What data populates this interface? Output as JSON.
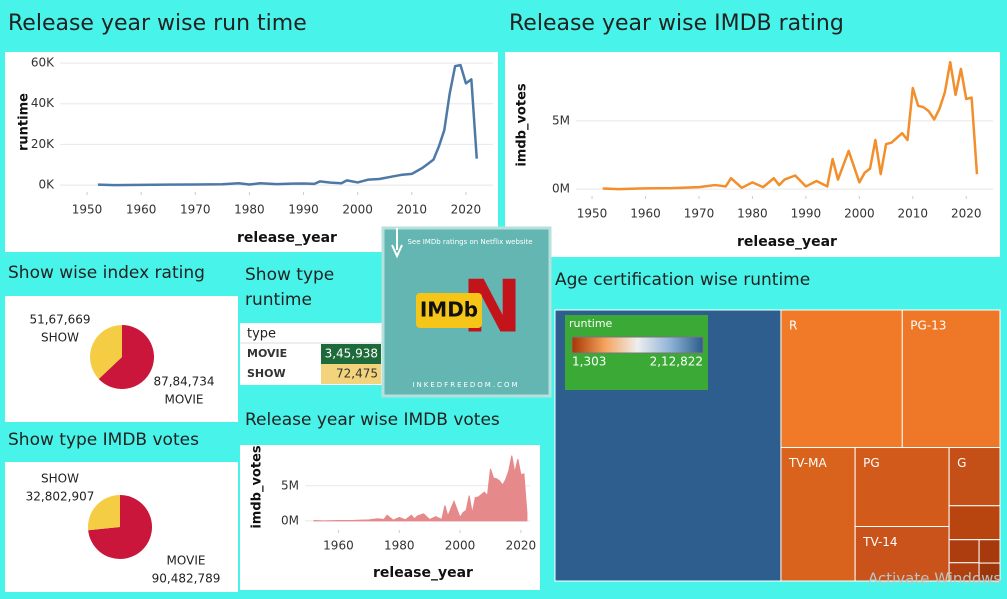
{
  "chart_data": [
    {
      "type": "line",
      "title": "Release year wise run time",
      "x_label": "release_year",
      "y_label": "runtime",
      "x": [
        1952,
        1955,
        1960,
        1965,
        1970,
        1975,
        1978,
        1980,
        1982,
        1985,
        1988,
        1990,
        1992,
        1993,
        1995,
        1997,
        1998,
        2000,
        2002,
        2004,
        2006,
        2008,
        2010,
        2011,
        2012,
        2013,
        2014,
        2015,
        2016,
        2017,
        2018,
        2019,
        2020,
        2021,
        2022
      ],
      "values": [
        200,
        0,
        100,
        200,
        300,
        400,
        900,
        300,
        900,
        500,
        700,
        800,
        600,
        1800,
        1200,
        900,
        2300,
        1300,
        2700,
        3000,
        4000,
        5000,
        5500,
        7000,
        8500,
        10500,
        12500,
        19000,
        27000,
        45000,
        58500,
        59000,
        50000,
        52000,
        13000
      ],
      "color": "#4e79a7",
      "xlim": [
        1945,
        2025
      ],
      "xticks": [
        1950,
        1960,
        1970,
        1980,
        1990,
        2000,
        2010,
        2020
      ],
      "ylim": [
        -3400,
        62000
      ],
      "yticks": [
        {
          "value": 0,
          "label": "0K"
        },
        {
          "value": 20000,
          "label": "20K"
        },
        {
          "value": 40000,
          "label": "40K"
        },
        {
          "value": 60000,
          "label": "60K"
        }
      ],
      "grid": true
    },
    {
      "type": "line",
      "title": "Release year wise IMDB rating",
      "x_label": "release_year",
      "y_label": "imdb_votes",
      "x": [
        1952,
        1955,
        1960,
        1965,
        1970,
        1973,
        1975,
        1976,
        1978,
        1980,
        1982,
        1984,
        1985,
        1986,
        1988,
        1990,
        1992,
        1994,
        1995,
        1996,
        1998,
        2000,
        2001,
        2002,
        2003,
        2004,
        2005,
        2006,
        2008,
        2009,
        2010,
        2011,
        2012,
        2013,
        2014,
        2015,
        2016,
        2017,
        2018,
        2019,
        2020,
        2021,
        2022
      ],
      "values": [
        50000,
        0,
        60000,
        80000,
        150000,
        300000,
        200000,
        800000,
        100000,
        500000,
        150000,
        800000,
        300000,
        700000,
        1000000,
        200000,
        600000,
        200000,
        2200000,
        700000,
        2800000,
        500000,
        1200000,
        1500000,
        3600000,
        1100000,
        3300000,
        3400000,
        4100000,
        3600000,
        7400000,
        6100000,
        6000000,
        5700000,
        5100000,
        5900000,
        7100000,
        9300000,
        6900000,
        8800000,
        6600000,
        6700000,
        1100000
      ],
      "color": "#f28e2b",
      "xlim": [
        1947,
        2025
      ],
      "xticks": [
        1950,
        1960,
        1970,
        1980,
        1990,
        2000,
        2010,
        2020
      ],
      "ylim": [
        -500000,
        9600000
      ],
      "yticks": [
        {
          "value": 0,
          "label": "0M"
        },
        {
          "value": 5000000,
          "label": "5M"
        }
      ],
      "grid": true
    },
    {
      "type": "pie",
      "title": "Show wise index rating",
      "categories": [
        "MOVIE",
        "SHOW"
      ],
      "values": [
        8784734,
        5167669
      ],
      "value_labels": [
        "87,84,734",
        "51,67,669"
      ],
      "colors": [
        "#c9163a",
        "#f5cd45"
      ]
    },
    {
      "type": "pie",
      "title": "Show type IMDB votes",
      "categories": [
        "MOVIE",
        "SHOW"
      ],
      "values": [
        90482789,
        32802907
      ],
      "value_labels": [
        "90,482,789",
        "32,802,907"
      ],
      "colors": [
        "#c9163a",
        "#f5cd45"
      ]
    },
    {
      "type": "table",
      "title": "Show type runtime",
      "header": "type",
      "categories": [
        "MOVIE",
        "SHOW"
      ],
      "values": [
        345938,
        72475
      ],
      "value_labels": [
        "3,45,938",
        "72,475"
      ],
      "colors": [
        "#1d6b3a",
        "#f3d47c"
      ]
    },
    {
      "type": "area",
      "title": "Release year wise IMDB votes",
      "x_label": "release_year",
      "y_label": "imdb_votes",
      "x": [
        1952,
        1955,
        1960,
        1965,
        1970,
        1973,
        1975,
        1976,
        1978,
        1980,
        1982,
        1984,
        1985,
        1986,
        1988,
        1990,
        1992,
        1994,
        1995,
        1996,
        1998,
        2000,
        2001,
        2002,
        2003,
        2004,
        2005,
        2006,
        2008,
        2009,
        2010,
        2011,
        2012,
        2013,
        2014,
        2015,
        2016,
        2017,
        2018,
        2019,
        2020,
        2021,
        2022
      ],
      "values": [
        50000,
        0,
        60000,
        80000,
        150000,
        300000,
        200000,
        800000,
        100000,
        500000,
        150000,
        800000,
        300000,
        700000,
        1000000,
        200000,
        600000,
        200000,
        2200000,
        700000,
        2800000,
        500000,
        1200000,
        1500000,
        3600000,
        1100000,
        3300000,
        3400000,
        4100000,
        3600000,
        7400000,
        6100000,
        6000000,
        5700000,
        5100000,
        5900000,
        7100000,
        9300000,
        6900000,
        8800000,
        6600000,
        6700000,
        1100000
      ],
      "color": "#e5898b",
      "xlim": [
        1949,
        2023
      ],
      "xticks": [
        1960,
        1980,
        2000,
        2020
      ],
      "ylim": [
        -1300000,
        10100000
      ],
      "yticks": [
        {
          "value": 0,
          "label": "0M"
        },
        {
          "value": 5000000,
          "label": "5M"
        }
      ],
      "grid": true
    },
    {
      "type": "treemap",
      "title": "Age certification wise runtime",
      "categories": [
        null,
        "R",
        "PG-13",
        "TV-MA",
        "PG",
        "TV-14",
        "G",
        null,
        null,
        null,
        null,
        null
      ],
      "values": [
        212822,
        58000,
        46700,
        34400,
        25800,
        17800,
        10300,
        6000,
        2400,
        1900,
        1700,
        1303
      ],
      "colors": [
        "#2d5e8e",
        "#f07a27",
        "#ee7828",
        "#d9621d",
        "#d25b1c",
        "#c9531a",
        "#c44f17",
        "#b8440f",
        "#ad3d0e",
        "#b0400f",
        "#a73a0d",
        "#9e360c"
      ],
      "legend": {
        "title": "runtime",
        "min": 1303,
        "max": 212822,
        "min_label": "1,303",
        "max_label": "2,12,822",
        "gradient": [
          "#a63603",
          "#f5a25d",
          "#eeeeee",
          "#8fb3d6",
          "#2b5c8a"
        ],
        "background": "#3aa936"
      }
    }
  ],
  "image": {
    "caption": "See IMDb ratings on Netflix website",
    "logo": "IMDb",
    "letter": "N",
    "site": "INKEDFREEDOM.COM"
  },
  "watermark": "Activate Windows"
}
